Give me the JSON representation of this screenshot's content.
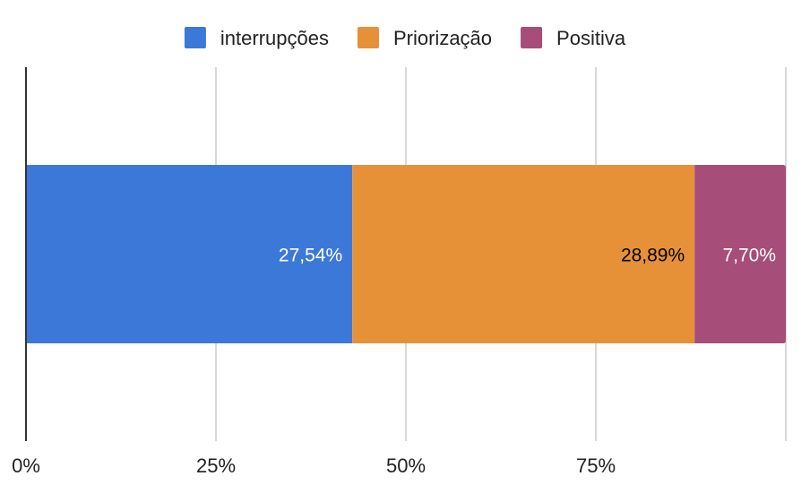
{
  "chart_data": {
    "type": "bar",
    "orientation": "horizontal",
    "stacked": "percent",
    "categories": [
      ""
    ],
    "series": [
      {
        "name": "interrupções",
        "values": [
          27.54
        ],
        "label": "27,54%",
        "color": "#3c78d8",
        "label_color": "#ffffff"
      },
      {
        "name": "Priorização",
        "values": [
          28.89
        ],
        "label": "28,89%",
        "color": "#e69138",
        "label_color": "#000000"
      },
      {
        "name": "Positiva",
        "values": [
          7.7
        ],
        "label": "7,70%",
        "color": "#a64d79",
        "label_color": "#ffffff"
      }
    ],
    "x_ticks": [
      {
        "value": 0,
        "label": "0%"
      },
      {
        "value": 25,
        "label": "25%"
      },
      {
        "value": 50,
        "label": "50%"
      },
      {
        "value": 75,
        "label": "75%"
      },
      {
        "value": 100,
        "label": ""
      }
    ],
    "xlim": [
      0,
      100
    ],
    "grid": true,
    "legend": "top-center",
    "title": "",
    "xlabel": "",
    "ylabel": ""
  }
}
